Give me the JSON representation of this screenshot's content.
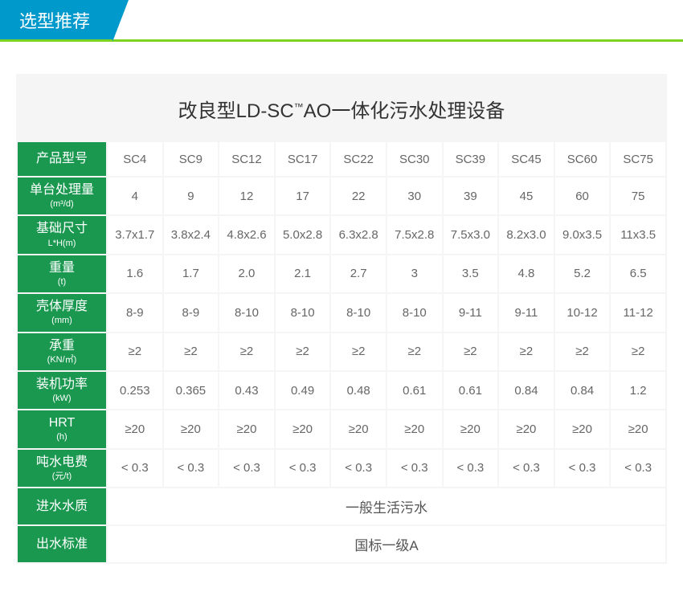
{
  "header": {
    "tab_label": "选型推荐"
  },
  "table": {
    "title_prefix": "改良型LD-SC",
    "title_super": "™",
    "title_suffix": "AO一体化污水处理设备",
    "colors": {
      "header_bg": "#1a9850",
      "tab_bg": "#0099cc",
      "underline": "#7ed321",
      "section_bg": "#f5f5f5",
      "cell_bg": "#ffffff",
      "text": "#666"
    },
    "row_labels": [
      {
        "main": "产品型号",
        "sub": ""
      },
      {
        "main": "单台处理量",
        "sub": "(m³/d)"
      },
      {
        "main": "基础尺寸",
        "sub": "L*H(m)"
      },
      {
        "main": "重量",
        "sub": "(t)"
      },
      {
        "main": "壳体厚度",
        "sub": "(mm)"
      },
      {
        "main": "承重",
        "sub": "(KN/㎡)"
      },
      {
        "main": "装机功率",
        "sub": "(kW)"
      },
      {
        "main": "HRT",
        "sub": "(h)"
      },
      {
        "main": "吨水电费",
        "sub": "(元/t)"
      }
    ],
    "data_rows": [
      [
        "SC4",
        "SC9",
        "SC12",
        "SC17",
        "SC22",
        "SC30",
        "SC39",
        "SC45",
        "SC60",
        "SC75"
      ],
      [
        "4",
        "9",
        "12",
        "17",
        "22",
        "30",
        "39",
        "45",
        "60",
        "75"
      ],
      [
        "3.7x1.7",
        "3.8x2.4",
        "4.8x2.6",
        "5.0x2.8",
        "6.3x2.8",
        "7.5x2.8",
        "7.5x3.0",
        "8.2x3.0",
        "9.0x3.5",
        "11x3.5"
      ],
      [
        "1.6",
        "1.7",
        "2.0",
        "2.1",
        "2.7",
        "3",
        "3.5",
        "4.8",
        "5.2",
        "6.5"
      ],
      [
        "8-9",
        "8-9",
        "8-10",
        "8-10",
        "8-10",
        "8-10",
        "9-11",
        "9-11",
        "10-12",
        "11-12"
      ],
      [
        "≥2",
        "≥2",
        "≥2",
        "≥2",
        "≥2",
        "≥2",
        "≥2",
        "≥2",
        "≥2",
        "≥2"
      ],
      [
        "0.253",
        "0.365",
        "0.43",
        "0.49",
        "0.48",
        "0.61",
        "0.61",
        "0.84",
        "0.84",
        "1.2"
      ],
      [
        "≥20",
        "≥20",
        "≥20",
        "≥20",
        "≥20",
        "≥20",
        "≥20",
        "≥20",
        "≥20",
        "≥20"
      ],
      [
        "< 0.3",
        "< 0.3",
        "< 0.3",
        "< 0.3",
        "< 0.3",
        "< 0.3",
        "< 0.3",
        "< 0.3",
        "< 0.3",
        "< 0.3"
      ]
    ],
    "merged_rows": [
      {
        "label": "进水水质",
        "value": "一般生活污水"
      },
      {
        "label": "出水标准",
        "value": "国标一级A"
      }
    ]
  }
}
